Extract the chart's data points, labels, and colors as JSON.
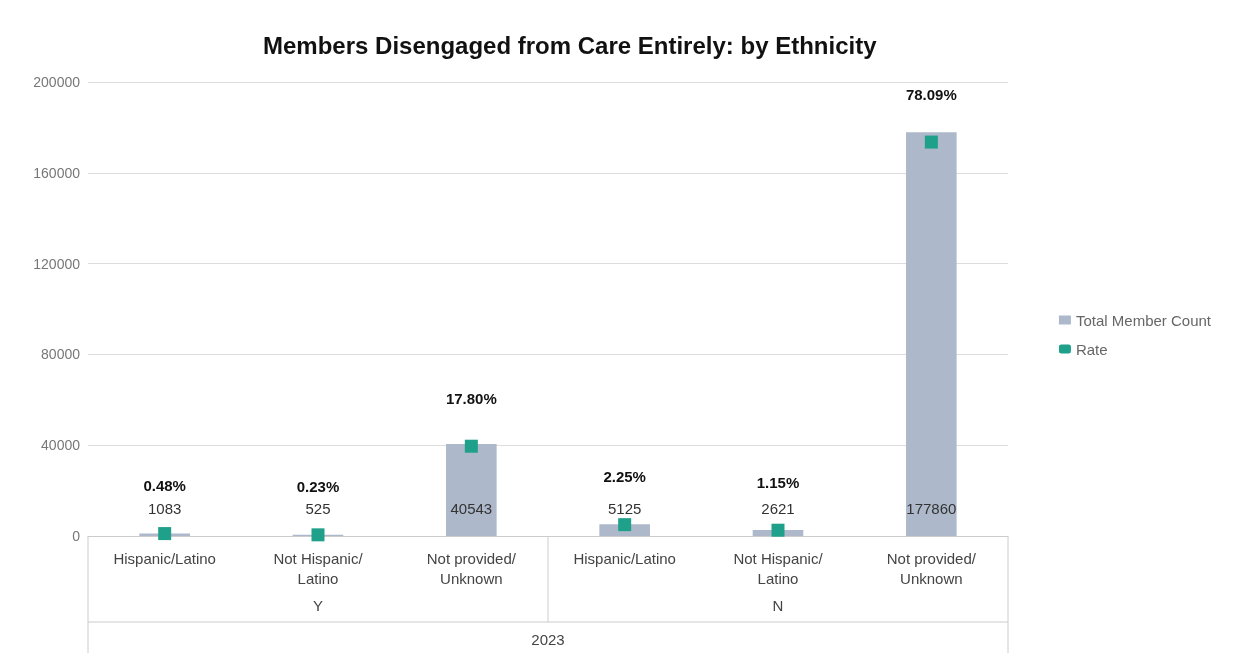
{
  "chart_data": {
    "type": "bar",
    "title": "Members Disengaged from Care Entirely: by Ethnicity",
    "categories": [
      "Hispanic/Latino",
      "Not Hispanic/Latino",
      "Not provided/Unknown",
      "Hispanic/Latino",
      "Not Hispanic/Latino",
      "Not provided/Unknown"
    ],
    "series": [
      {
        "name": "Total Member Count",
        "type": "bar",
        "color": "#adb9ca",
        "values": [
          1083,
          525,
          40543,
          5125,
          2621,
          177860
        ],
        "value_labels": [
          "1083",
          "525",
          "40543",
          "5125",
          "2621",
          "177860"
        ]
      },
      {
        "name": "Rate",
        "type": "scatter",
        "axis": "y2",
        "marker": "square",
        "color": "#1fa08b",
        "values": [
          0.48,
          0.23,
          17.8,
          2.25,
          1.15,
          78.09
        ],
        "value_labels": [
          "0.48%",
          "0.23%",
          "17.80%",
          "2.25%",
          "1.15%",
          "78.09%"
        ]
      }
    ],
    "ylim": [
      0,
      200000
    ],
    "yticks": [
      0,
      40000,
      80000,
      120000,
      160000,
      200000
    ],
    "y2lim": [
      0,
      90
    ],
    "grid": "y",
    "legend": "right",
    "annotations": [
      "Y",
      "N",
      "2023"
    ]
  }
}
